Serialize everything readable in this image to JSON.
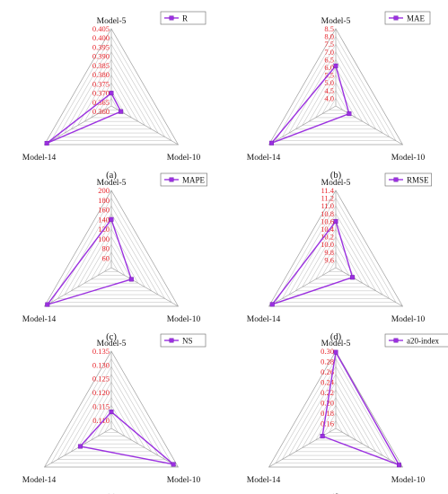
{
  "chart_data": [
    {
      "type": "radar",
      "panel_label": "(a)",
      "axes": [
        "Model-5",
        "Model-10",
        "Model-14"
      ],
      "series": [
        {
          "name": "R",
          "values": [
            0.37,
            0.369,
            0.4035
          ]
        }
      ],
      "range": [
        0.363,
        0.405
      ],
      "tick_labels": [
        "0.405",
        "0.400",
        "0.395",
        "0.390",
        "0.385",
        "0.380",
        "0.375",
        "0.370",
        "0.365",
        "0.360"
      ],
      "ticks": [
        0.405,
        0.4,
        0.395,
        0.39,
        0.385,
        0.38,
        0.375,
        0.37,
        0.365,
        0.36
      ],
      "grid": true,
      "legend_position": "top-right"
    },
    {
      "type": "radar",
      "panel_label": "(b)",
      "axes": [
        "Model-5",
        "Model-10",
        "Model-14"
      ],
      "series": [
        {
          "name": "MAE",
          "values": [
            6.1,
            4.5,
            8.3
          ]
        }
      ],
      "range": [
        3.5,
        8.5
      ],
      "tick_labels": [
        "8.5",
        "8.0",
        "7.5",
        "7.0",
        "6.5",
        "6.0",
        "5.5",
        "5.0",
        "4.5",
        "4.0"
      ],
      "ticks": [
        8.5,
        8.0,
        7.5,
        7.0,
        6.5,
        6.0,
        5.5,
        5.0,
        4.5,
        4.0
      ],
      "grid": true,
      "legend_position": "top-right"
    },
    {
      "type": "radar",
      "panel_label": "(c)",
      "axes": [
        "Model-5",
        "Model-10",
        "Model-14"
      ],
      "series": [
        {
          "name": "MAPE",
          "values": [
            140,
            88,
            193
          ]
        }
      ],
      "range": [
        40,
        200
      ],
      "tick_labels": [
        "200",
        "180",
        "160",
        "140",
        "120",
        "100",
        "80",
        "60"
      ],
      "ticks": [
        200,
        180,
        160,
        140,
        120,
        100,
        80,
        60
      ],
      "grid": true,
      "legend_position": "top-right"
    },
    {
      "type": "radar",
      "panel_label": "(d)",
      "axes": [
        "Model-5",
        "Model-10",
        "Model-14"
      ],
      "series": [
        {
          "name": "RMSE",
          "values": [
            10.6,
            9.9,
            11.3
          ]
        }
      ],
      "range": [
        9.4,
        11.4
      ],
      "tick_labels": [
        "11.4",
        "11.2",
        "11.0",
        "10.8",
        "10.6",
        "10.4",
        "10.2",
        "10.0",
        "9.8",
        "9.6"
      ],
      "ticks": [
        11.4,
        11.2,
        11.0,
        10.8,
        10.6,
        10.4,
        10.2,
        10.0,
        9.8,
        9.6
      ],
      "grid": true,
      "legend_position": "top-right"
    },
    {
      "type": "radar",
      "panel_label": "(e)",
      "axes": [
        "Model-5",
        "Model-10",
        "Model-14"
      ],
      "series": [
        {
          "name": "NS",
          "values": [
            0.113,
            0.133,
            0.12
          ]
        }
      ],
      "range": [
        0.107,
        0.135
      ],
      "tick_labels": [
        "0.135",
        "0.130",
        "0.125",
        "0.120",
        "0.115",
        "0.110"
      ],
      "ticks": [
        0.135,
        0.13,
        0.125,
        0.12,
        0.115,
        0.11
      ],
      "grid": true,
      "legend_position": "top-right"
    },
    {
      "type": "radar",
      "panel_label": "(f)",
      "axes": [
        "Model-5",
        "Model-10",
        "Model-14"
      ],
      "series": [
        {
          "name": "a20-index",
          "values": [
            0.298,
            0.292,
            0.18
          ]
        }
      ],
      "range": [
        0.15,
        0.3
      ],
      "tick_labels": [
        "0.30",
        "0.28",
        "0.26",
        "0.24",
        "0.22",
        "0.20",
        "0.18",
        "0.16"
      ],
      "ticks": [
        0.3,
        0.28,
        0.26,
        0.24,
        0.22,
        0.2,
        0.18,
        0.16
      ],
      "grid": true,
      "legend_position": "top-right"
    }
  ]
}
